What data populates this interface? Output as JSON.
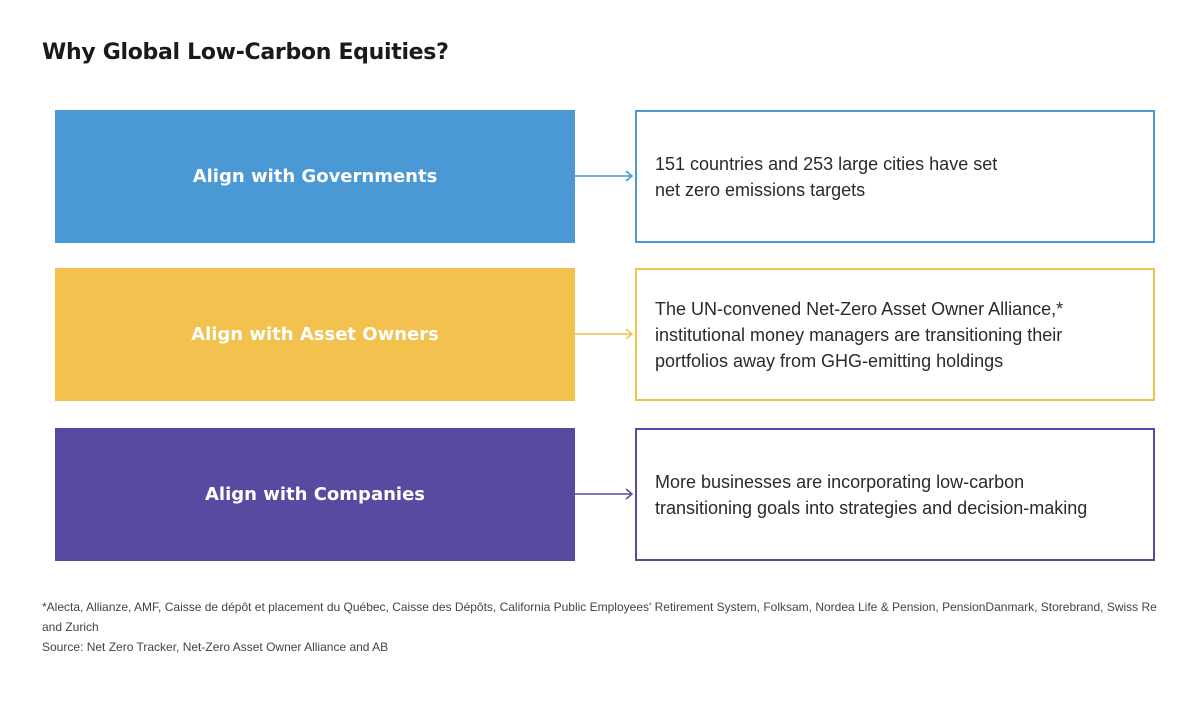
{
  "title": "Why Global Low-Carbon Equities?",
  "colors": {
    "governments": "#4a98d4",
    "asset_owners": "#f2c14e",
    "companies": "#584aa0"
  },
  "rows": [
    {
      "label": "Align with Governments",
      "description": "151 countries and 253 large cities have set net zero emissions targets",
      "line1": "151 countries and 253 large cities have set",
      "line2": "net zero emissions targets"
    },
    {
      "label": "Align with Asset Owners",
      "line1": "The UN-convened Net-Zero Asset Owner Alliance,*",
      "line2": "institutional money managers are transitioning their",
      "line3": "portfolios away from GHG-emitting holdings"
    },
    {
      "label": "Align with Companies",
      "line1": "More businesses are incorporating low-carbon",
      "line2": "transitioning goals into strategies and decision-making"
    }
  ],
  "footnote": "*Alecta, Allianze, AMF, Caisse de dépôt et placement du Québec, Caisse des Dépôts, California Public Employees' Retirement System, Folksam, Nordea Life & Pension, PensionDanmark, Storebrand, Swiss Re and Zurich",
  "source": "Source: Net Zero Tracker, Net-Zero Asset Owner Alliance and AB"
}
